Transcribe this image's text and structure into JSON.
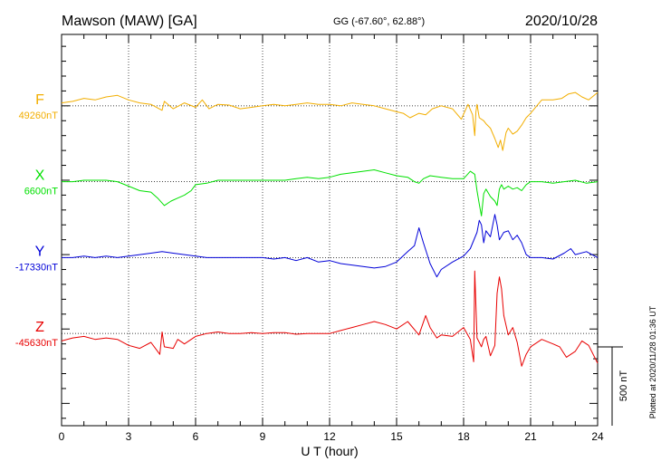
{
  "header": {
    "station": "Mawson (MAW)  [GA]",
    "coords": "GG (-67.60°,  62.88°)",
    "date": "2020/10/28"
  },
  "side_note": "Plotted at 2020/11/28 01:36 UT",
  "scale_label": "500 nT",
  "colors": {
    "F": "#f2ae00",
    "X": "#00e000",
    "Y": "#0000d8",
    "Z": "#e80000"
  },
  "chart_data": {
    "type": "line",
    "xlabel": "U T (hour)",
    "x_ticks": [
      "0",
      "3",
      "6",
      "9",
      "12",
      "15",
      "18",
      "21",
      "24"
    ],
    "xlim": [
      0,
      24
    ],
    "ylim": [
      -2150,
      480
    ],
    "y_unit": "nT",
    "scale_bar_nT": 500,
    "series": [
      {
        "name": "F",
        "baseline_label": "49260nT",
        "offset_nT": 0,
        "x": [
          0,
          0.5,
          1,
          1.5,
          2,
          2.5,
          3,
          3.5,
          4,
          4.5,
          4.6,
          5,
          5.5,
          6,
          6.3,
          6.6,
          7,
          7.5,
          8,
          8.5,
          9,
          9.5,
          10,
          10.5,
          11,
          11.5,
          12,
          12.5,
          13,
          13.5,
          14,
          14.5,
          15,
          15.3,
          15.6,
          16,
          16.3,
          16.6,
          17,
          17.5,
          17.9,
          18.2,
          18.4,
          18.5,
          18.55,
          18.6,
          18.7,
          18.9,
          19,
          19.2,
          19.4,
          19.55,
          19.65,
          19.75,
          19.9,
          20,
          20.2,
          20.4,
          20.6,
          20.8,
          21,
          21.5,
          22,
          22.4,
          22.7,
          23,
          23.3,
          23.6,
          24
        ],
        "y": [
          20,
          30,
          50,
          40,
          60,
          70,
          40,
          20,
          10,
          -30,
          30,
          -20,
          20,
          -10,
          40,
          -20,
          10,
          5,
          -20,
          -10,
          0,
          10,
          0,
          10,
          20,
          10,
          10,
          0,
          20,
          10,
          0,
          -20,
          -40,
          -50,
          -80,
          -50,
          -60,
          -20,
          0,
          -20,
          -90,
          10,
          -60,
          -200,
          -40,
          10,
          -80,
          -100,
          -120,
          -150,
          -220,
          -280,
          -230,
          -300,
          -180,
          -150,
          -190,
          -170,
          -130,
          -80,
          -50,
          40,
          40,
          50,
          80,
          90,
          60,
          40,
          90
        ]
      },
      {
        "name": "X",
        "baseline_label": "6600nT",
        "offset_nT": -510,
        "x": [
          0,
          0.5,
          1,
          1.5,
          2,
          2.5,
          3,
          3.5,
          4,
          4.3,
          4.6,
          4.9,
          5.2,
          5.5,
          5.8,
          6,
          6.5,
          7,
          8,
          9,
          10,
          10.5,
          11,
          11.5,
          12,
          12.5,
          13,
          13.5,
          14,
          14.5,
          15,
          15.5,
          15.8,
          16,
          16.2,
          16.5,
          17,
          17.5,
          18,
          18.3,
          18.5,
          18.6,
          18.7,
          18.8,
          18.9,
          19,
          19.2,
          19.4,
          19.5,
          19.6,
          19.7,
          19.8,
          20,
          20.2,
          20.4,
          20.6,
          20.8,
          21,
          21.5,
          22,
          22.5,
          23,
          23.5,
          24
        ],
        "y": [
          0,
          0,
          10,
          10,
          10,
          0,
          -30,
          -60,
          -70,
          -110,
          -160,
          -130,
          -110,
          -90,
          -60,
          -20,
          -10,
          10,
          10,
          10,
          10,
          20,
          30,
          20,
          30,
          50,
          60,
          70,
          80,
          60,
          40,
          30,
          0,
          -10,
          20,
          40,
          30,
          20,
          20,
          70,
          50,
          -60,
          -150,
          -230,
          -80,
          -50,
          -100,
          -130,
          -160,
          -50,
          -20,
          -50,
          -30,
          -50,
          -40,
          -60,
          -20,
          0,
          0,
          -10,
          0,
          10,
          -10,
          0
        ]
      },
      {
        "name": "Y",
        "baseline_label": "-17330nT",
        "offset_nT": -1020,
        "x": [
          0,
          0.5,
          1,
          1.5,
          2,
          2.5,
          3,
          3.5,
          4,
          4.5,
          5,
          5.5,
          6,
          6.5,
          7,
          8,
          9,
          9.5,
          10,
          10.5,
          11,
          11.5,
          12,
          12.5,
          13,
          13.5,
          14,
          14.5,
          15,
          15.5,
          15.8,
          16,
          16.2,
          16.5,
          16.8,
          17,
          17.5,
          18,
          18.3,
          18.6,
          18.7,
          18.8,
          18.9,
          19,
          19.2,
          19.4,
          19.5,
          19.6,
          19.8,
          20,
          20.2,
          20.4,
          20.6,
          20.8,
          21,
          21.5,
          22,
          22.5,
          22.8,
          23,
          23.5,
          24
        ],
        "y": [
          0,
          0,
          10,
          0,
          10,
          0,
          10,
          20,
          30,
          40,
          30,
          20,
          10,
          0,
          0,
          0,
          0,
          -10,
          0,
          -20,
          0,
          -30,
          -20,
          -40,
          -50,
          -60,
          -70,
          -60,
          -30,
          40,
          80,
          200,
          100,
          -40,
          -130,
          -80,
          -30,
          10,
          60,
          170,
          250,
          220,
          100,
          180,
          140,
          290,
          220,
          120,
          170,
          180,
          120,
          150,
          100,
          20,
          0,
          0,
          -10,
          30,
          60,
          20,
          40,
          0
        ]
      },
      {
        "name": "Z",
        "baseline_label": "-45630nT",
        "offset_nT": -1530,
        "x": [
          0,
          0.5,
          1,
          1.5,
          2,
          2.5,
          3,
          3.5,
          4,
          4.4,
          4.5,
          4.6,
          5,
          5.2,
          5.5,
          6,
          6.5,
          7,
          7.5,
          8,
          8.5,
          9,
          9.5,
          10,
          10.5,
          11,
          11.5,
          12,
          12.5,
          13,
          13.5,
          14,
          14.5,
          15,
          15.5,
          16,
          16.3,
          16.5,
          16.8,
          17,
          17.5,
          18,
          18.3,
          18.45,
          18.5,
          18.6,
          18.7,
          18.8,
          18.9,
          19,
          19.2,
          19.4,
          19.5,
          19.6,
          19.7,
          19.8,
          20,
          20.2,
          20.4,
          20.6,
          20.8,
          21,
          21.5,
          22,
          22.3,
          22.6,
          23,
          23.3,
          23.6,
          24
        ],
        "y": [
          -50,
          -30,
          -20,
          -40,
          -30,
          -40,
          -80,
          -100,
          -60,
          -140,
          10,
          -90,
          -100,
          -40,
          -70,
          -20,
          0,
          10,
          0,
          0,
          5,
          0,
          5,
          5,
          -5,
          0,
          0,
          0,
          20,
          40,
          60,
          80,
          60,
          30,
          80,
          -10,
          120,
          40,
          -30,
          -10,
          -20,
          40,
          -40,
          -190,
          420,
          -30,
          -60,
          -90,
          -40,
          -20,
          -150,
          -80,
          270,
          380,
          300,
          120,
          -10,
          40,
          -60,
          -220,
          -140,
          -90,
          -40,
          -70,
          -90,
          -160,
          -120,
          -50,
          -80,
          -200
        ]
      }
    ]
  }
}
